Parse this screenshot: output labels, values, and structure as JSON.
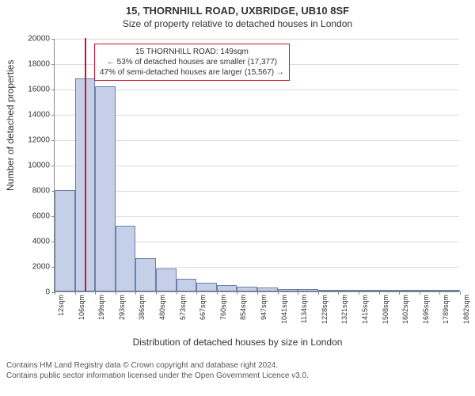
{
  "header": {
    "title_main": "15, THORNHILL ROAD, UXBRIDGE, UB10 8SF",
    "title_sub": "Size of property relative to detached houses in London"
  },
  "chart": {
    "type": "histogram",
    "y_axis_label": "Number of detached properties",
    "x_axis_label": "Distribution of detached houses by size in London",
    "ylim": [
      0,
      20000
    ],
    "ytick_step": 2000,
    "y_ticks": [
      0,
      2000,
      4000,
      6000,
      8000,
      10000,
      12000,
      14000,
      16000,
      18000,
      20000
    ],
    "x_ticks": [
      "12sqm",
      "106sqm",
      "199sqm",
      "293sqm",
      "386sqm",
      "480sqm",
      "573sqm",
      "667sqm",
      "760sqm",
      "854sqm",
      "947sqm",
      "1041sqm",
      "1134sqm",
      "1228sqm",
      "1321sqm",
      "1415sqm",
      "1508sqm",
      "1602sqm",
      "1695sqm",
      "1789sqm",
      "1882sqm"
    ],
    "bar_fill": "#c5d0e8",
    "bar_border": "#6a7eaa",
    "grid_color": "#dddddd",
    "background_color": "#ffffff",
    "highlight_color": "#d01030",
    "highlight_sqm": 149,
    "x_min_sqm": 12,
    "x_max_sqm": 1882,
    "bars": [
      {
        "v": 8000
      },
      {
        "v": 16800
      },
      {
        "v": 16200
      },
      {
        "v": 5200
      },
      {
        "v": 2600
      },
      {
        "v": 1800
      },
      {
        "v": 1000
      },
      {
        "v": 700
      },
      {
        "v": 500
      },
      {
        "v": 400
      },
      {
        "v": 300
      },
      {
        "v": 200
      },
      {
        "v": 200
      },
      {
        "v": 150
      },
      {
        "v": 140
      },
      {
        "v": 130
      },
      {
        "v": 120
      },
      {
        "v": 110
      },
      {
        "v": 100
      },
      {
        "v": 90
      }
    ],
    "annotation": {
      "line1": "15 THORNHILL ROAD: 149sqm",
      "line2": "← 53% of detached houses are smaller (17,377)",
      "line3": "47% of semi-detached houses are larger (15,567) →"
    }
  },
  "footer": {
    "line1": "Contains HM Land Registry data © Crown copyright and database right 2024.",
    "line2": "Contains public sector information licensed under the Open Government Licence v3.0."
  }
}
